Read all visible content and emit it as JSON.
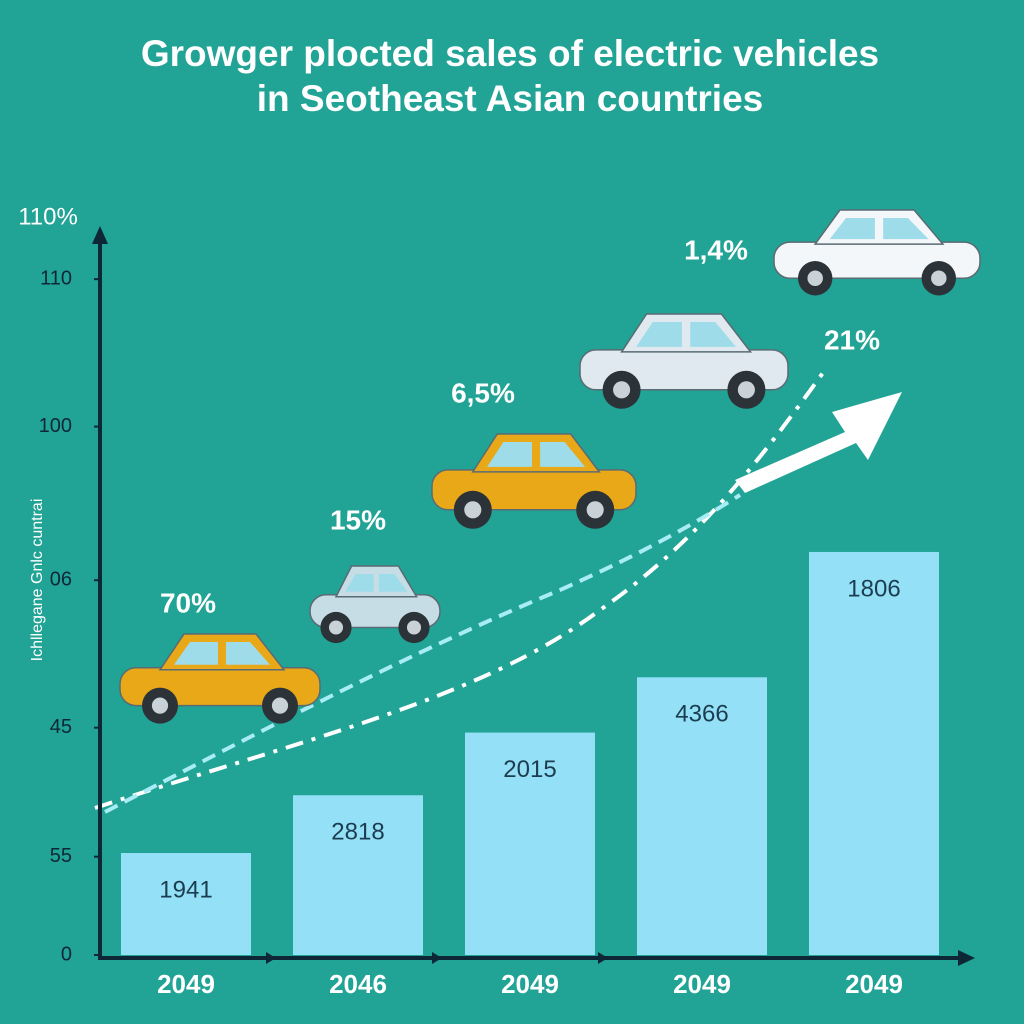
{
  "chart_data": {
    "type": "bar",
    "title_lines": [
      "Growger plocted sales of electric vehicles",
      "in Seotheast Asian countries"
    ],
    "y_label": "Ichllegane Gnlc cuntrai",
    "y_axis_top_label": "110%",
    "categories": [
      "2049",
      "2046",
      "2049",
      "2049",
      "2049"
    ],
    "values": [
      16.6,
      26,
      36.2,
      45.2,
      65.6
    ],
    "bar_labels": [
      "1941",
      "2818",
      "2015",
      "4366",
      "1806"
    ],
    "annotations": [
      "70%",
      "15%",
      "6,5%",
      "1,4%",
      "21%"
    ],
    "color": "#93e0f7",
    "ylim": [
      0,
      118
    ],
    "yticks": [
      0,
      {
        "value": 16,
        "label": "55"
      },
      {
        "value": 37,
        "label": "45"
      },
      {
        "value": 61,
        "label": "06"
      },
      {
        "value": 86,
        "label": "100"
      },
      110
    ]
  }
}
